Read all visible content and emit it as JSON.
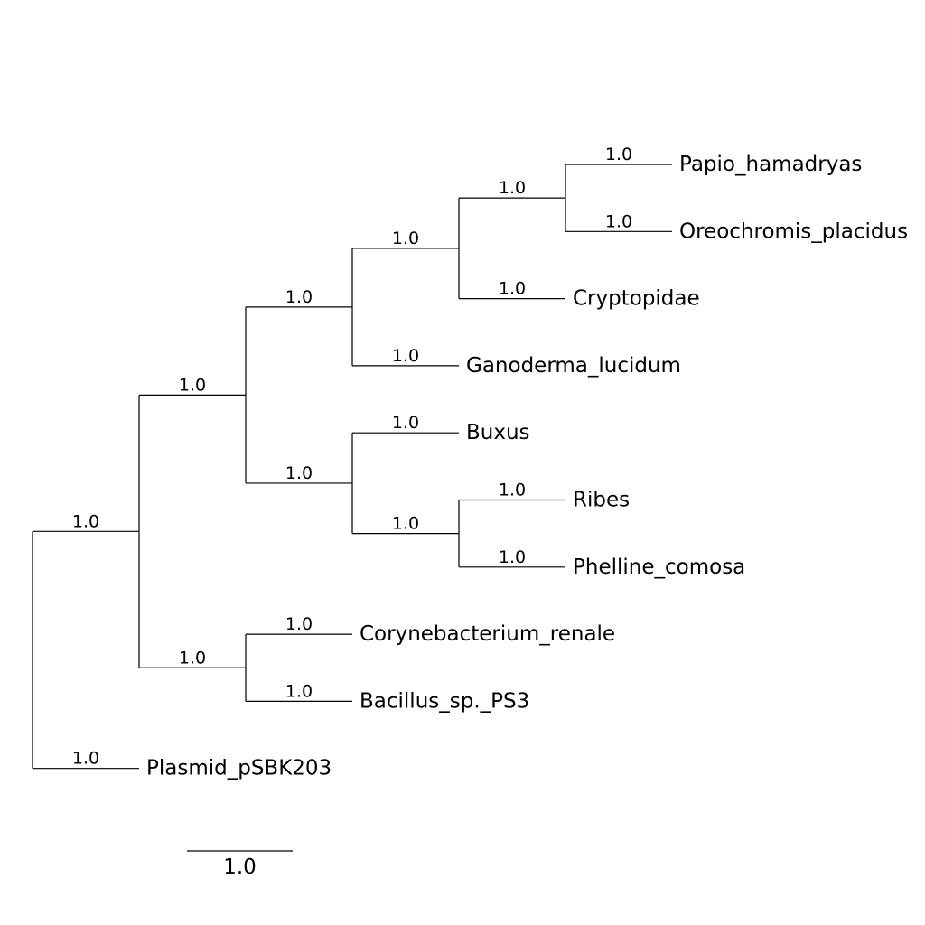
{
  "tree": {
    "support": "1.0",
    "children": [
      {
        "support": "1.0",
        "children": [
          {
            "support": "1.0",
            "children": [
              {
                "support": "1.0",
                "children": [
                  {
                    "support": "1.0",
                    "children": [
                      {
                        "support": "1.0",
                        "children": [
                          {
                            "name": "Papio_hamadryas",
                            "support": "1.0"
                          },
                          {
                            "name": "Oreochromis_placidus",
                            "support": "1.0"
                          }
                        ]
                      },
                      {
                        "name": "Cryptopidae",
                        "support": "1.0"
                      }
                    ]
                  },
                  {
                    "name": "Ganoderma_lucidum",
                    "support": "1.0"
                  }
                ]
              },
              {
                "support": "1.0",
                "children": [
                  {
                    "name": "Buxus",
                    "support": "1.0"
                  },
                  {
                    "support": "1.0",
                    "children": [
                      {
                        "name": "Ribes",
                        "support": "1.0"
                      },
                      {
                        "name": "Phelline_comosa",
                        "support": "1.0"
                      }
                    ]
                  }
                ]
              }
            ]
          },
          {
            "support": "1.0",
            "children": [
              {
                "name": "Corynebacterium_renale",
                "support": "1.0"
              },
              {
                "name": "Bacillus_sp._PS3",
                "support": "1.0"
              }
            ]
          }
        ]
      },
      {
        "name": "Plasmid_pSBK203",
        "support": "1.0"
      }
    ]
  },
  "scale_bar": {
    "label": "1.0",
    "length": 1.0
  }
}
